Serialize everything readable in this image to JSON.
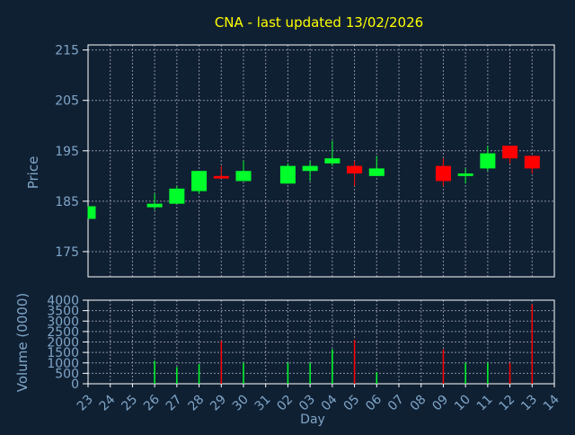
{
  "colors": {
    "background": "#102033",
    "plot_bg": "#102033",
    "frame": "#ffffff",
    "grid": "#8a8fa0",
    "title": "#ffff00",
    "axis_text": "#7fa6c8",
    "up": "#00ff2a",
    "down": "#ff0000",
    "wick": "#c8c8c8"
  },
  "chart_data": [
    {
      "type": "candlestick",
      "title": "CNA - last updated 13/02/2026",
      "ylabel": "Price",
      "ylim": [
        170,
        216
      ],
      "yticks": [
        175,
        185,
        195,
        205,
        215
      ],
      "xlabel": "Day",
      "categories": [
        "23",
        "24",
        "25",
        "26",
        "27",
        "28",
        "29",
        "30",
        "31",
        "02",
        "03",
        "04",
        "05",
        "06",
        "07",
        "08",
        "09",
        "10",
        "11",
        "12",
        "13",
        "14"
      ],
      "grid": true,
      "series": [
        {
          "day": "23",
          "open": 181.5,
          "high": 184,
          "low": 181.5,
          "close": 184
        },
        {
          "day": "26",
          "open": 183.8,
          "high": 186.5,
          "low": 183.3,
          "close": 184.5
        },
        {
          "day": "27",
          "open": 184.5,
          "high": 188,
          "low": 184.5,
          "close": 187.5
        },
        {
          "day": "28",
          "open": 187,
          "high": 191,
          "low": 186.5,
          "close": 191
        },
        {
          "day": "29",
          "open": 190,
          "high": 192,
          "low": 189.5,
          "close": 189.5
        },
        {
          "day": "30",
          "open": 189,
          "high": 193,
          "low": 189,
          "close": 191
        },
        {
          "day": "02",
          "open": 188.5,
          "high": 192.5,
          "low": 188.5,
          "close": 192
        },
        {
          "day": "03",
          "open": 191,
          "high": 193,
          "low": 189,
          "close": 192
        },
        {
          "day": "04",
          "open": 192.5,
          "high": 197,
          "low": 192,
          "close": 193.5
        },
        {
          "day": "05",
          "open": 192,
          "high": 193,
          "low": 188,
          "close": 190.5
        },
        {
          "day": "06",
          "open": 190,
          "high": 194,
          "low": 190,
          "close": 191.5
        },
        {
          "day": "09",
          "open": 192,
          "high": 193.5,
          "low": 188,
          "close": 189
        },
        {
          "day": "10",
          "open": 190,
          "high": 191.5,
          "low": 188.5,
          "close": 190.5
        },
        {
          "day": "11",
          "open": 191.5,
          "high": 196,
          "low": 191,
          "close": 194.5
        },
        {
          "day": "12",
          "open": 196,
          "high": 196,
          "low": 192.5,
          "close": 193.5
        },
        {
          "day": "13",
          "open": 194,
          "high": 194,
          "low": 190.5,
          "close": 191.5
        }
      ]
    },
    {
      "type": "bar",
      "ylabel": "Volume (0000)",
      "ylim": [
        0,
        4000
      ],
      "yticks": [
        0,
        500,
        1000,
        1500,
        2000,
        2500,
        3000,
        3500,
        4000
      ],
      "xlabel": "Day",
      "categories": [
        "23",
        "24",
        "25",
        "26",
        "27",
        "28",
        "29",
        "30",
        "31",
        "02",
        "03",
        "04",
        "05",
        "06",
        "07",
        "08",
        "09",
        "10",
        "11",
        "12",
        "13",
        "14"
      ],
      "grid": true,
      "values": [
        {
          "day": "26",
          "value": 1100,
          "dir": "up"
        },
        {
          "day": "27",
          "value": 800,
          "dir": "up"
        },
        {
          "day": "28",
          "value": 950,
          "dir": "up"
        },
        {
          "day": "29",
          "value": 2050,
          "dir": "down"
        },
        {
          "day": "30",
          "value": 1000,
          "dir": "up"
        },
        {
          "day": "02",
          "value": 1000,
          "dir": "up"
        },
        {
          "day": "03",
          "value": 1000,
          "dir": "up"
        },
        {
          "day": "04",
          "value": 1650,
          "dir": "up"
        },
        {
          "day": "05",
          "value": 2100,
          "dir": "down"
        },
        {
          "day": "06",
          "value": 550,
          "dir": "up"
        },
        {
          "day": "09",
          "value": 1650,
          "dir": "down"
        },
        {
          "day": "10",
          "value": 1000,
          "dir": "up"
        },
        {
          "day": "11",
          "value": 1000,
          "dir": "up"
        },
        {
          "day": "12",
          "value": 1000,
          "dir": "down"
        },
        {
          "day": "13",
          "value": 3800,
          "dir": "down"
        }
      ]
    }
  ]
}
